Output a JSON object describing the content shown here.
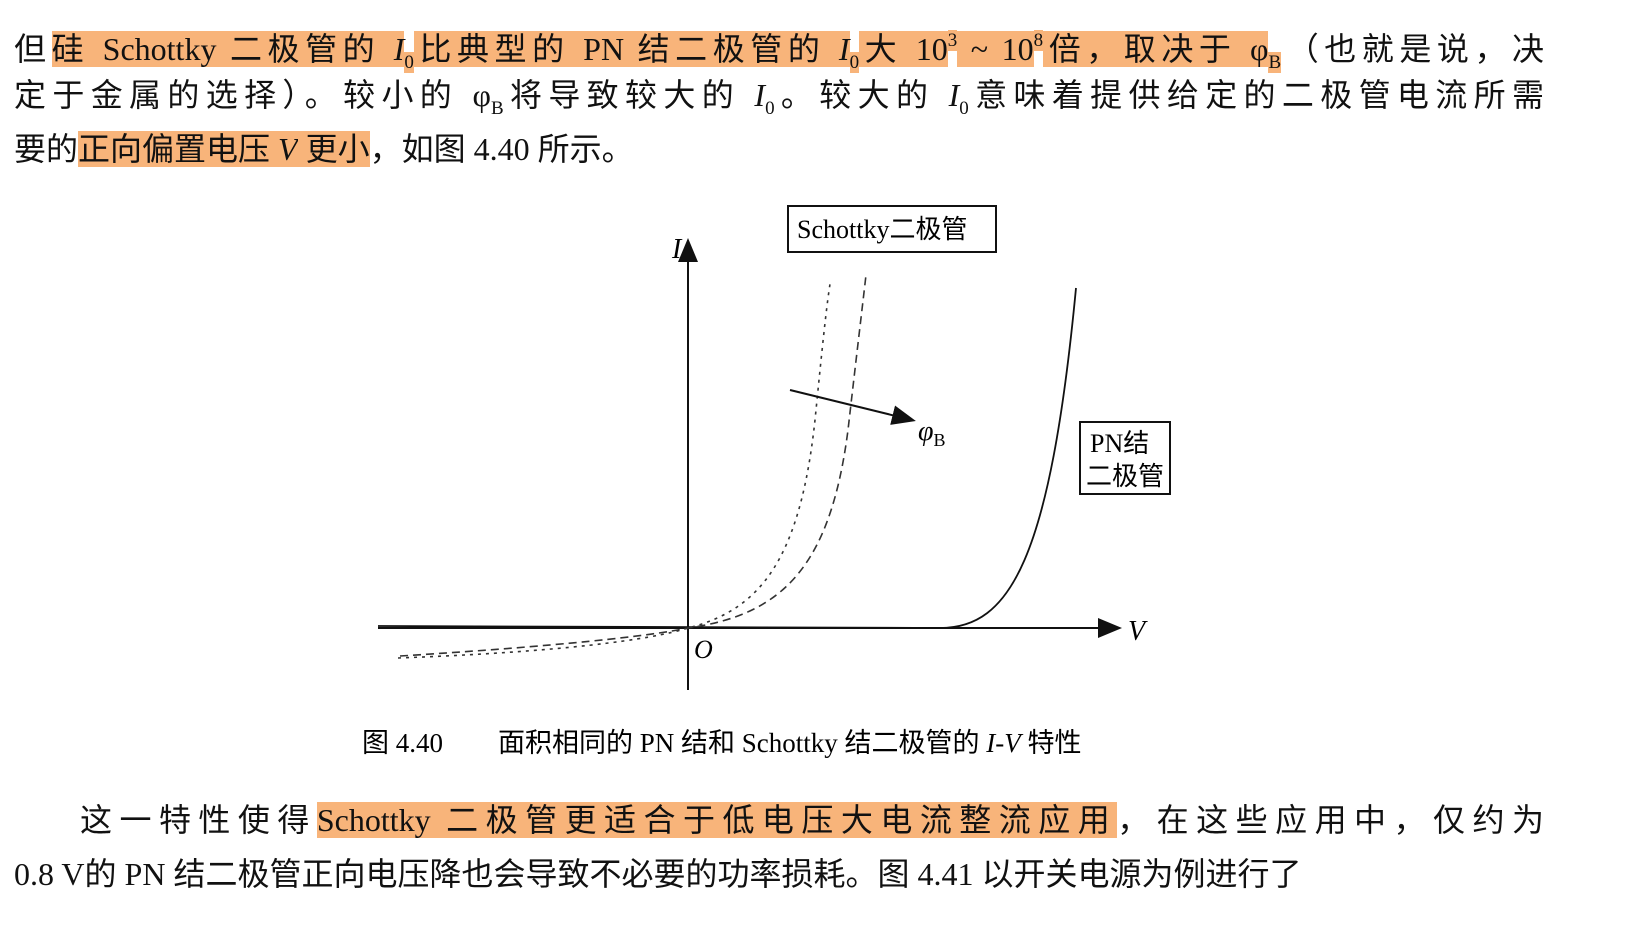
{
  "paragraphs": [
    {
      "lines": [
        [
          {
            "text": "但"
          },
          {
            "text": "硅 Schottky 二极管的 ",
            "highlight": true
          },
          {
            "text": "I",
            "format": "italic",
            "highlight": true
          },
          {
            "text": "0",
            "format": "sub",
            "highlight": true
          },
          {
            "text": "比典型的 PN 结二极管的 ",
            "highlight": true
          },
          {
            "text": "I",
            "format": "italic",
            "highlight": true
          },
          {
            "text": "0",
            "format": "sub",
            "highlight": true
          },
          {
            "text": "大 10",
            "highlight": true
          },
          {
            "text": "3",
            "format": "sup",
            "highlight": true
          },
          {
            "text": " ~ 10",
            "highlight": true
          },
          {
            "text": "8",
            "format": "sup",
            "highlight": true
          },
          {
            "text": "倍，取决于 φ",
            "highlight": true
          },
          {
            "text": "B",
            "format": "sub",
            "highlight": true
          },
          {
            "text": "（也就是说，决"
          }
        ],
        [
          {
            "text": "定于金属的选择）。较小的 φ"
          },
          {
            "text": "B",
            "format": "sub"
          },
          {
            "text": "将导致较大的 "
          },
          {
            "text": "I",
            "format": "italic"
          },
          {
            "text": "0",
            "format": "sub"
          },
          {
            "text": "。较大的 "
          },
          {
            "text": "I",
            "format": "italic"
          },
          {
            "text": "0",
            "format": "sub"
          },
          {
            "text": "意味着提供给定的二极管电流所需"
          }
        ],
        [
          {
            "text": "要的"
          },
          {
            "text": "正向偏置电压 ",
            "highlight": true
          },
          {
            "text": "V",
            "format": "italic",
            "highlight": true
          },
          {
            "text": " 更小",
            "highlight": true
          },
          {
            "text": "，如图 4.40 所示。"
          }
        ]
      ]
    },
    {
      "lines": [
        [
          {
            "text": "这一特性使得"
          },
          {
            "text": "Schottky 二极管更适合于低电压大电流整流应用",
            "highlight": true
          },
          {
            "text": "，在这些应用中，仅约为"
          }
        ],
        [
          {
            "text": "0.8 V的 PN 结二极管正向电压降也会导致不必要的功率损耗。图 4.41 以开关电源为例进行了"
          }
        ]
      ]
    }
  ],
  "figure": {
    "axis_y": "I",
    "axis_x": "V",
    "origin": "O",
    "schottky_label": "Schottky二极管",
    "phi": "φ",
    "phi_sub": "B",
    "pn_label_1": "PN结",
    "pn_label_2": "二极管",
    "caption_number": "图 4.40",
    "caption_text": "面积相同的 PN 结和 Schottky 结二极管的 ",
    "caption_italic": "I-V",
    "caption_end": " 特性"
  }
}
